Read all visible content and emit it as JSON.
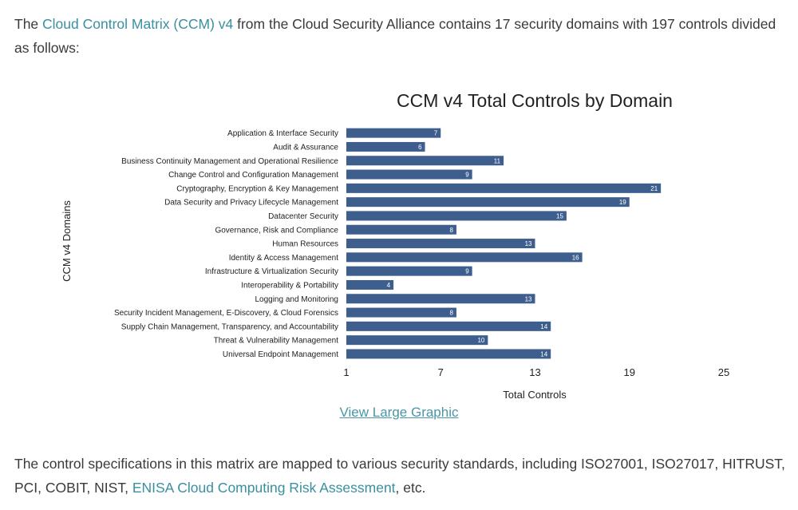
{
  "intro": {
    "pre": "The ",
    "link": "Cloud Control Matrix (CCM) v4",
    "post": " from the Cloud Security Alliance contains 17 security domains with 197 controls divided as follows:"
  },
  "view_large_link": "View Large Graphic",
  "outro": {
    "pre": "The control specifications in this matrix are mapped to various security standards, including ISO27001, ISO27017, HITRUST, PCI, COBIT, NIST, ",
    "link": "ENISA Cloud Computing Risk Assessment",
    "post": ", etc."
  },
  "colors": {
    "bar": "#3e5f8e",
    "link": "#3a8fa0"
  },
  "chart_data": {
    "type": "bar",
    "orientation": "horizontal",
    "title": "CCM v4 Total Controls by Domain",
    "xlabel": "Total Controls",
    "ylabel": "CCM v4 Domains",
    "xlim": [
      1,
      25
    ],
    "xticks": [
      "1",
      "7",
      "13",
      "19",
      "25"
    ],
    "grid": false,
    "categories": [
      "Application & Interface Security",
      "Audit & Assurance",
      "Business Continuity Management and Operational Resilience",
      "Change Control and Configuration Management",
      "Cryptography, Encryption & Key Management",
      "Data Security and Privacy Lifecycle Management",
      "Datacenter Security",
      "Governance, Risk and Compliance",
      "Human Resources",
      "Identity & Access Management",
      "Infrastructure & Virtualization Security",
      "Interoperability & Portability",
      "Logging and Monitoring",
      "Security Incident Management, E-Discovery, & Cloud Forensics",
      "Supply Chain Management, Transparency, and Accountability",
      "Threat & Vulnerability Management",
      "Universal Endpoint Management"
    ],
    "values": [
      7,
      6,
      11,
      9,
      21,
      19,
      15,
      8,
      13,
      16,
      9,
      4,
      13,
      8,
      14,
      10,
      14
    ]
  }
}
